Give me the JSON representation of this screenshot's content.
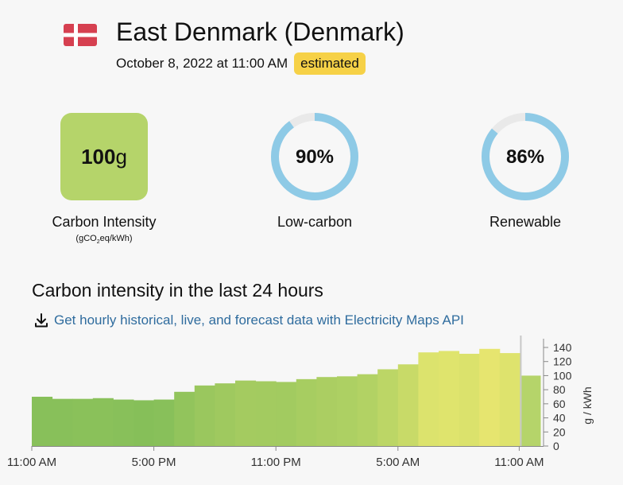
{
  "zone": {
    "title": "East Denmark (Denmark)",
    "datetime": "October 8, 2022 at 11:00 AM",
    "badge": "estimated",
    "flag_icon": "denmark-flag-icon",
    "flag_colors": {
      "red": "#d64050",
      "white": "#ffffff"
    }
  },
  "metrics": {
    "carbon_intensity": {
      "value": "100",
      "unit": "g",
      "label": "Carbon Intensity",
      "unit_label_prefix": "(gCO",
      "unit_label_sub": "2",
      "unit_label_suffix": "eq/kWh)",
      "color": "#b5d46a"
    },
    "low_carbon": {
      "value": "90%",
      "fraction": 0.9,
      "label": "Low-carbon",
      "color": "#8ecae6"
    },
    "renewable": {
      "value": "86%",
      "fraction": 0.86,
      "label": "Renewable",
      "color": "#8ecae6"
    }
  },
  "history": {
    "title": "Carbon intensity in the last 24 hours",
    "link_text": "Get hourly historical, live, and forecast data with Electricity Maps API",
    "link_icon": "download-icon"
  },
  "chart_data": {
    "type": "bar",
    "ylabel": "g / kWh",
    "ylim": [
      0,
      140
    ],
    "yticks": [
      0,
      20,
      40,
      60,
      80,
      100,
      120,
      140
    ],
    "xticks": [
      "11:00 AM",
      "5:00 PM",
      "11:00 PM",
      "5:00 AM",
      "11:00 AM"
    ],
    "values": [
      70,
      67,
      67,
      68,
      66,
      65,
      66,
      77,
      86,
      89,
      93,
      92,
      91,
      95,
      98,
      99,
      102,
      109,
      116,
      133,
      135,
      131,
      138,
      132,
      100
    ],
    "colors": [
      "#88c05a",
      "#88c05a",
      "#8ac15a",
      "#8ac15a",
      "#88c05a",
      "#86bf59",
      "#88c05a",
      "#92c45c",
      "#9ac75e",
      "#9fc95f",
      "#a4cb60",
      "#a3cb60",
      "#a2cb60",
      "#a7cd61",
      "#abce62",
      "#add063",
      "#b2d264",
      "#bcd666",
      "#c8da68",
      "#dce36d",
      "#dfe46d",
      "#dbe26c",
      "#e6e56f",
      "#dee36d",
      "#b5d46a"
    ]
  }
}
